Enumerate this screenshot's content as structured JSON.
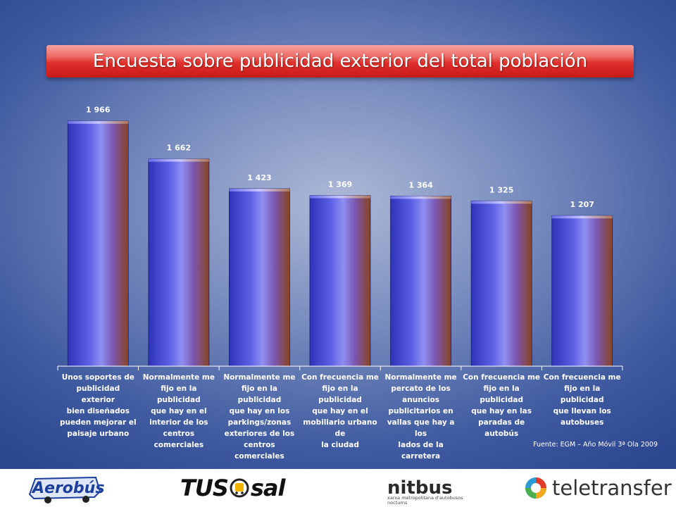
{
  "chart_data": {
    "type": "bar",
    "title": "Encuesta sobre publicidad exterior del total población",
    "categories": [
      "Unos soportes de publicidad exterior bien diseñados pueden mejorar el paisaje urbano",
      "Normalmente me fijo en la publicidad que hay en el interior de los centros comerciales",
      "Normalmente me fijo en la publicidad que hay en los parkings/zonas exteriores de los centros comerciales",
      "Con frecuencia me fijo en la publicidad que hay en el mobiliario urbano de la ciudad",
      "Normalmente me percato de los anuncios publicitarios en vallas que hay a los lados de la carretera",
      "Con frecuencia me fijo en la publicidad que hay en las paradas de autobús",
      "Con frecuencia me fijo en la publicidad que llevan los autobuses"
    ],
    "category_lines": [
      [
        "Unos soportes de",
        "publicidad exterior",
        "bien diseñados",
        "pueden mejorar el",
        "paisaje urbano"
      ],
      [
        "Normalmente me",
        "fijo en la publicidad",
        "que hay en el",
        "interior de los",
        "centros comerciales"
      ],
      [
        "Normalmente me",
        "fijo en la publicidad",
        "que hay en los",
        "parkings/zonas",
        "exteriores de los",
        "centros comerciales"
      ],
      [
        "Con frecuencia me",
        "fijo en la publicidad",
        "que hay en el",
        "mobiliario urbano de",
        "la ciudad"
      ],
      [
        "Normalmente me",
        "percato de los",
        "anuncios",
        "publicitarios en",
        "vallas que hay a los",
        "lados de la carretera"
      ],
      [
        "Con frecuencia me",
        "fijo en la publicidad",
        "que hay en las",
        "paradas de autobús"
      ],
      [
        "Con frecuencia me",
        "fijo en la publicidad",
        "que llevan los",
        "autobuses"
      ]
    ],
    "values": [
      1966,
      1662,
      1423,
      1369,
      1364,
      1325,
      1207
    ],
    "value_labels": [
      "1 966",
      "1 662",
      "1 423",
      "1 369",
      "1 364",
      "1 325",
      "1 207"
    ],
    "ylim": [
      0,
      2100
    ],
    "grid": false,
    "legend": "none",
    "colors": {
      "bar_left": "#3a3fc8",
      "bar_mid": "#7e82f0",
      "bar_right": "#8a4a2a"
    }
  },
  "source_note": "Fuente: EGM – Año Móvil 3ª Ola 2009",
  "footer": {
    "logos": [
      {
        "icon": "aerobus-logo",
        "text": "Aerobús"
      },
      {
        "icon": "tus-sal-logo",
        "text_a": "TUS",
        "text_b": "sal"
      },
      {
        "icon": "nitbus-logo",
        "text": "nitbus",
        "sub": "xarxa metropolitana d'autobusos nocturns"
      },
      {
        "icon": "teletransfer-logo",
        "text": "teletransfer"
      }
    ]
  }
}
